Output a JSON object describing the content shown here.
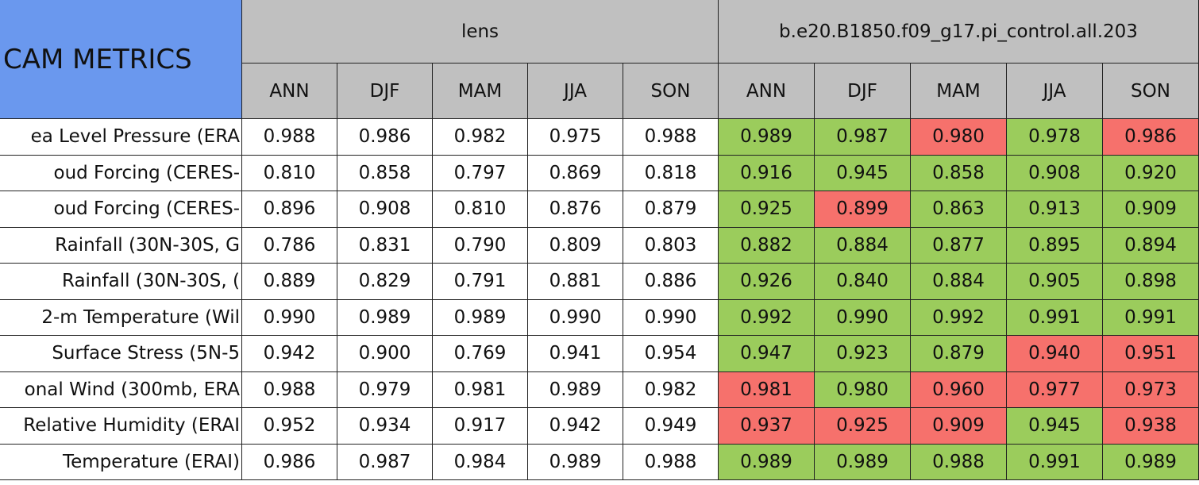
{
  "header": {
    "title": "CAM METRICS",
    "groups": [
      {
        "name": "lens",
        "seasons": [
          "ANN",
          "DJF",
          "MAM",
          "JJA",
          "SON"
        ]
      },
      {
        "name": "b.e20.B1850.f09_g17.pi_control.all.203",
        "seasons": [
          "ANN",
          "DJF",
          "MAM",
          "JJA",
          "SON"
        ]
      }
    ]
  },
  "colors": {
    "title_bg": "#6a98ee",
    "header_bg": "#c0c0c0",
    "plain": "#ffffff",
    "green": "#9bcc5c",
    "red": "#f6716c"
  },
  "rows": [
    {
      "label": "ea Level Pressure (ERA",
      "values": [
        "0.988",
        "0.986",
        "0.982",
        "0.975",
        "0.988",
        "0.989",
        "0.987",
        "0.980",
        "0.978",
        "0.986"
      ],
      "colors": [
        "plain",
        "plain",
        "plain",
        "plain",
        "plain",
        "green",
        "green",
        "red",
        "green",
        "red"
      ]
    },
    {
      "label": "oud Forcing (CERES-",
      "values": [
        "0.810",
        "0.858",
        "0.797",
        "0.869",
        "0.818",
        "0.916",
        "0.945",
        "0.858",
        "0.908",
        "0.920"
      ],
      "colors": [
        "plain",
        "plain",
        "plain",
        "plain",
        "plain",
        "green",
        "green",
        "green",
        "green",
        "green"
      ]
    },
    {
      "label": "oud Forcing (CERES-",
      "values": [
        "0.896",
        "0.908",
        "0.810",
        "0.876",
        "0.879",
        "0.925",
        "0.899",
        "0.863",
        "0.913",
        "0.909"
      ],
      "colors": [
        "plain",
        "plain",
        "plain",
        "plain",
        "plain",
        "green",
        "red",
        "green",
        "green",
        "green"
      ]
    },
    {
      "label": "Rainfall (30N-30S, G",
      "values": [
        "0.786",
        "0.831",
        "0.790",
        "0.809",
        "0.803",
        "0.882",
        "0.884",
        "0.877",
        "0.895",
        "0.894"
      ],
      "colors": [
        "plain",
        "plain",
        "plain",
        "plain",
        "plain",
        "green",
        "green",
        "green",
        "green",
        "green"
      ]
    },
    {
      "label": "Rainfall (30N-30S, (",
      "values": [
        "0.889",
        "0.829",
        "0.791",
        "0.881",
        "0.886",
        "0.926",
        "0.840",
        "0.884",
        "0.905",
        "0.898"
      ],
      "colors": [
        "plain",
        "plain",
        "plain",
        "plain",
        "plain",
        "green",
        "green",
        "green",
        "green",
        "green"
      ]
    },
    {
      "label": "2-m Temperature (Wil",
      "values": [
        "0.990",
        "0.989",
        "0.989",
        "0.990",
        "0.990",
        "0.992",
        "0.990",
        "0.992",
        "0.991",
        "0.991"
      ],
      "colors": [
        "plain",
        "plain",
        "plain",
        "plain",
        "plain",
        "green",
        "green",
        "green",
        "green",
        "green"
      ]
    },
    {
      "label": "Surface Stress (5N-5",
      "values": [
        "0.942",
        "0.900",
        "0.769",
        "0.941",
        "0.954",
        "0.947",
        "0.923",
        "0.879",
        "0.940",
        "0.951"
      ],
      "colors": [
        "plain",
        "plain",
        "plain",
        "plain",
        "plain",
        "green",
        "green",
        "green",
        "red",
        "red"
      ]
    },
    {
      "label": "onal Wind (300mb, ERA",
      "values": [
        "0.988",
        "0.979",
        "0.981",
        "0.989",
        "0.982",
        "0.981",
        "0.980",
        "0.960",
        "0.977",
        "0.973"
      ],
      "colors": [
        "plain",
        "plain",
        "plain",
        "plain",
        "plain",
        "red",
        "green",
        "red",
        "red",
        "red"
      ]
    },
    {
      "label": "Relative Humidity (ERAI",
      "values": [
        "0.952",
        "0.934",
        "0.917",
        "0.942",
        "0.949",
        "0.937",
        "0.925",
        "0.909",
        "0.945",
        "0.938"
      ],
      "colors": [
        "plain",
        "plain",
        "plain",
        "plain",
        "plain",
        "red",
        "red",
        "red",
        "green",
        "red"
      ]
    },
    {
      "label": "Temperature (ERAI)",
      "values": [
        "0.986",
        "0.987",
        "0.984",
        "0.989",
        "0.988",
        "0.989",
        "0.989",
        "0.988",
        "0.991",
        "0.989"
      ],
      "colors": [
        "plain",
        "plain",
        "plain",
        "plain",
        "plain",
        "green",
        "green",
        "green",
        "green",
        "green"
      ]
    }
  ]
}
